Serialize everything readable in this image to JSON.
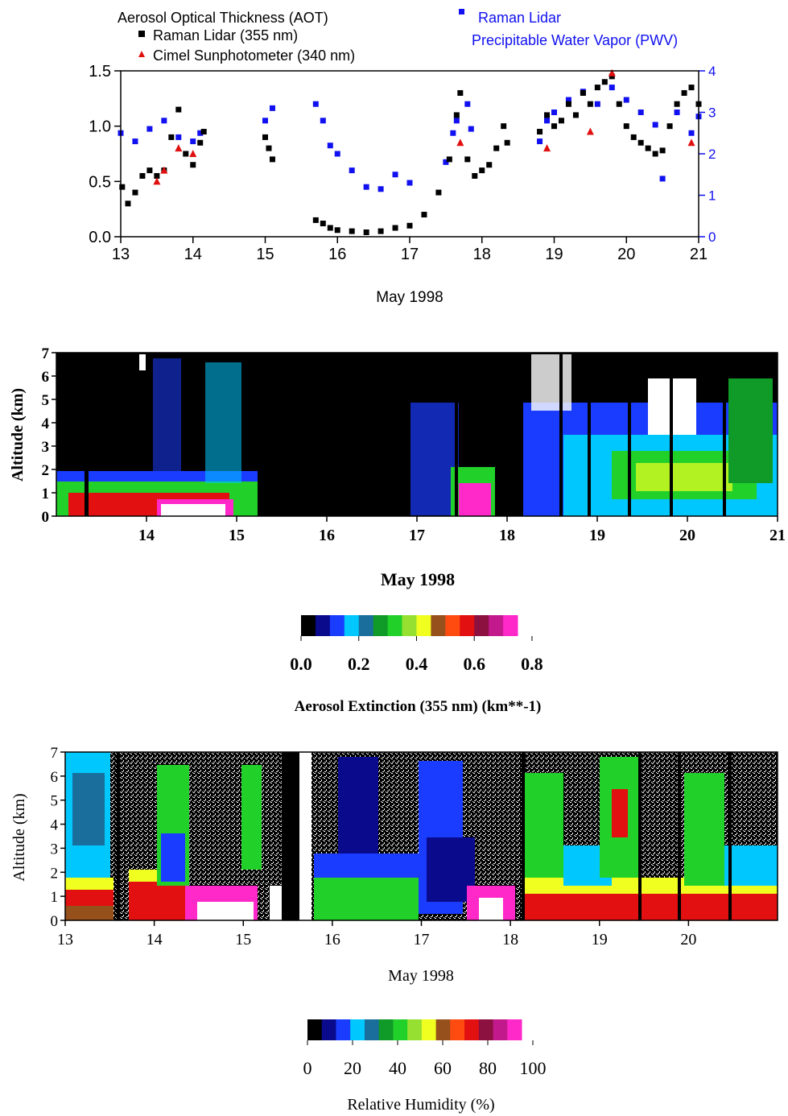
{
  "chart_data": [
    {
      "type": "scatter",
      "legend": {
        "aot_heading": "Aerosol Optical Thickness (AOT)",
        "lidar_aot": "Raman Lidar (355 nm)",
        "cimel": "Cimel Sunphotometer (340 nm)",
        "pwv_line1": "Raman Lidar",
        "pwv_line2": "Precipitable Water Vapor (PWV)"
      },
      "xlabel": "May   1998",
      "xlim": [
        13,
        21
      ],
      "ylim": [
        0,
        1.5
      ],
      "y2lim": [
        0,
        4
      ],
      "xticks": [
        "13",
        "14",
        "15",
        "16",
        "17",
        "18",
        "19",
        "20",
        "21"
      ],
      "yticks": [
        "0.0",
        "0.5",
        "1.0",
        "1.5"
      ],
      "y2ticks": [
        "0",
        "1",
        "2",
        "3",
        "4"
      ],
      "colors": {
        "lidar_aot": "#000000",
        "cimel": "#e01010",
        "pwv": "#1010f0"
      },
      "series": [
        {
          "name": "Raman Lidar (355 nm)",
          "axis": "left",
          "marker": "square",
          "color": "#000000",
          "x": [
            13.02,
            13.1,
            13.2,
            13.3,
            13.4,
            13.5,
            13.6,
            13.7,
            13.8,
            13.9,
            14.0,
            14.1,
            14.15,
            15.0,
            15.05,
            15.1,
            15.7,
            15.8,
            15.9,
            16.0,
            16.2,
            16.4,
            16.6,
            16.8,
            17.0,
            17.2,
            17.4,
            17.55,
            17.65,
            17.7,
            17.8,
            17.9,
            18.0,
            18.1,
            18.2,
            18.3,
            18.35,
            18.8,
            18.9,
            19.0,
            19.1,
            19.2,
            19.3,
            19.4,
            19.5,
            19.6,
            19.7,
            19.8,
            19.9,
            20.0,
            20.1,
            20.2,
            20.3,
            20.4,
            20.5,
            20.6,
            20.7,
            20.8,
            20.9,
            21.0
          ],
          "y": [
            0.45,
            0.3,
            0.4,
            0.55,
            0.6,
            0.55,
            0.6,
            0.9,
            1.15,
            0.75,
            0.65,
            0.85,
            0.95,
            0.9,
            0.8,
            0.7,
            0.15,
            0.12,
            0.08,
            0.06,
            0.05,
            0.04,
            0.05,
            0.08,
            0.1,
            0.2,
            0.4,
            0.7,
            1.1,
            1.3,
            0.7,
            0.55,
            0.6,
            0.65,
            0.8,
            1.0,
            0.85,
            0.95,
            1.1,
            1.0,
            1.05,
            1.2,
            1.1,
            1.3,
            1.2,
            1.35,
            1.4,
            1.45,
            1.2,
            1.0,
            0.9,
            0.85,
            0.8,
            0.75,
            0.78,
            1.0,
            1.2,
            1.3,
            1.35,
            1.2
          ]
        },
        {
          "name": "Cimel Sunphotometer (340 nm)",
          "axis": "left",
          "marker": "triangle",
          "color": "#e01010",
          "x": [
            13.5,
            13.6,
            13.8,
            14.0,
            17.7,
            18.9,
            19.5,
            19.8,
            20.9
          ],
          "y": [
            0.5,
            0.6,
            0.8,
            0.75,
            0.85,
            0.8,
            0.95,
            1.48,
            0.85
          ]
        },
        {
          "name": "Raman Lidar",
          "axis": "right",
          "marker": "square",
          "color": "#1010f0",
          "x": [
            13.0,
            13.2,
            13.4,
            13.6,
            13.8,
            14.0,
            14.1,
            15.0,
            15.1,
            15.7,
            15.8,
            15.9,
            16.0,
            16.2,
            16.4,
            16.6,
            16.8,
            17.0,
            17.5,
            17.6,
            17.65,
            17.8,
            17.85,
            18.8,
            18.9,
            19.0,
            19.2,
            19.4,
            19.6,
            19.8,
            20.0,
            20.2,
            20.4,
            20.5,
            20.7,
            20.9,
            21.0
          ],
          "y": [
            2.5,
            2.3,
            2.6,
            2.8,
            2.4,
            2.3,
            2.5,
            2.8,
            3.1,
            3.2,
            2.8,
            2.2,
            2.0,
            1.6,
            1.2,
            1.15,
            1.5,
            1.3,
            1.8,
            2.5,
            2.8,
            3.2,
            2.6,
            2.3,
            2.8,
            3.0,
            3.3,
            3.5,
            3.2,
            3.6,
            3.3,
            3.0,
            2.7,
            1.4,
            3.0,
            2.5,
            2.9
          ]
        }
      ]
    },
    {
      "type": "heatmap",
      "ylabel": "Altitude (km)",
      "xlabel": "May 1998",
      "xlim": [
        13,
        21
      ],
      "ylim": [
        0,
        7
      ],
      "xticks": [
        "14",
        "15",
        "16",
        "17",
        "18",
        "19",
        "20",
        "21"
      ],
      "yticks": [
        "0",
        "1",
        "2",
        "3",
        "4",
        "5",
        "6",
        "7"
      ],
      "colorbar_label": "Aerosol Extinction (355 nm) (km**-1)",
      "colorbar_ticks": [
        "0.0",
        "0.2",
        "0.4",
        "0.6",
        "0.8"
      ],
      "colorbar_range": [
        0,
        0.8
      ],
      "colorbar_colors": [
        "#000000",
        "#0a0a8c",
        "#1a3cff",
        "#00c8ff",
        "#1a6e9c",
        "#109a28",
        "#22d02a",
        "#96e032",
        "#f0ff20",
        "#96501c",
        "#ff4a10",
        "#e21010",
        "#8c1040",
        "#c21a8c",
        "#ff28c8"
      ]
    },
    {
      "type": "heatmap",
      "ylabel": "Altitude (km)",
      "xlabel": "May 1998",
      "xlim": [
        13,
        21
      ],
      "ylim": [
        0,
        7
      ],
      "xticks": [
        "13",
        "14",
        "15",
        "16",
        "17",
        "18",
        "19",
        "20"
      ],
      "yticks": [
        "0",
        "1",
        "2",
        "3",
        "4",
        "5",
        "6",
        "7"
      ],
      "colorbar_label": "Relative Humidity (%)",
      "colorbar_ticks": [
        "0",
        "20",
        "40",
        "60",
        "80",
        "100"
      ],
      "colorbar_range": [
        0,
        100
      ],
      "colorbar_colors": [
        "#000000",
        "#0a0a8c",
        "#1a3cff",
        "#00c8ff",
        "#1a6e9c",
        "#109a28",
        "#22d02a",
        "#96e032",
        "#f0ff20",
        "#96501c",
        "#ff4a10",
        "#e21010",
        "#8c1040",
        "#c21a8c",
        "#ff28c8"
      ]
    }
  ]
}
